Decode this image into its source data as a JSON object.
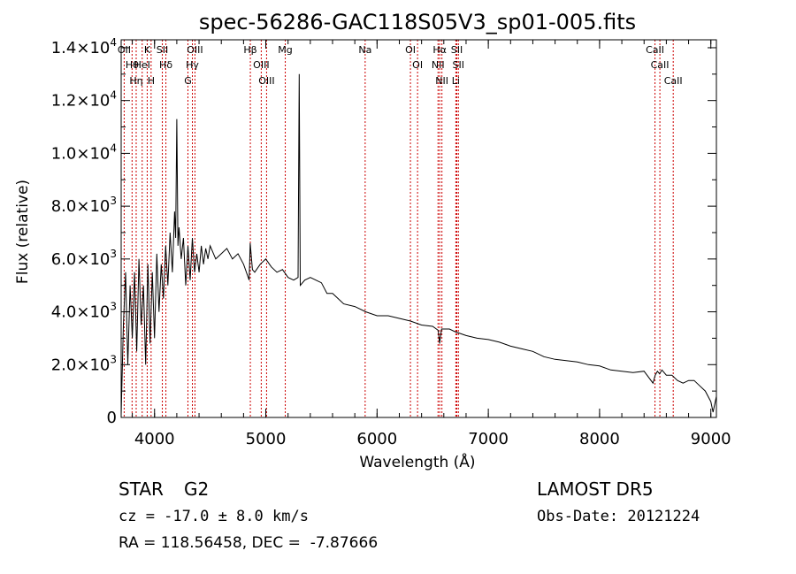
{
  "chart_data": {
    "type": "line",
    "title": "spec-56286-GAC118S05V3_sp01-005.fits",
    "xlabel": "Wavelength (Å)",
    "ylabel": "Flux (relative)",
    "xlim": [
      3700,
      9050
    ],
    "ylim": [
      0,
      14300
    ],
    "x_ticks": [
      {
        "value": 4000,
        "label": "4000"
      },
      {
        "value": 5000,
        "label": "5000"
      },
      {
        "value": 6000,
        "label": "6000"
      },
      {
        "value": 7000,
        "label": "7000"
      },
      {
        "value": 8000,
        "label": "8000"
      },
      {
        "value": 9000,
        "label": "9000"
      }
    ],
    "y_ticks": [
      {
        "value": 0,
        "mant": "0",
        "exp": ""
      },
      {
        "value": 2000,
        "mant": "2.0×10",
        "exp": "3"
      },
      {
        "value": 4000,
        "mant": "4.0×10",
        "exp": "3"
      },
      {
        "value": 6000,
        "mant": "6.0×10",
        "exp": "3"
      },
      {
        "value": 8000,
        "mant": "8.0×10",
        "exp": "3"
      },
      {
        "value": 10000,
        "mant": "1.0×10",
        "exp": "4"
      },
      {
        "value": 12000,
        "mant": "1.2×10",
        "exp": "4"
      },
      {
        "value": 14000,
        "mant": "1.4×10",
        "exp": "4"
      }
    ],
    "grid": false,
    "series_color": "#000000",
    "line_color": "#cc0000",
    "series": [
      {
        "x": [
          3700,
          3720,
          3740,
          3760,
          3780,
          3800,
          3820,
          3840,
          3860,
          3880,
          3900,
          3920,
          3940,
          3960,
          3980,
          4000,
          4020,
          4040,
          4060,
          4080,
          4100,
          4120,
          4140,
          4160,
          4180,
          4190,
          4200,
          4210,
          4220,
          4240,
          4260,
          4280,
          4300,
          4320,
          4340,
          4360,
          4380,
          4400,
          4420,
          4440,
          4460,
          4480,
          4500,
          4550,
          4600,
          4650,
          4700,
          4750,
          4800,
          4850,
          4860,
          4880,
          4900,
          4950,
          5000,
          5050,
          5100,
          5150,
          5200,
          5250,
          5290,
          5300,
          5310,
          5350,
          5400,
          5450,
          5500,
          5550,
          5600,
          5650,
          5700,
          5800,
          5900,
          6000,
          6100,
          6200,
          6300,
          6400,
          6500,
          6550,
          6562,
          6580,
          6650,
          6700,
          6800,
          6900,
          7000,
          7100,
          7200,
          7300,
          7400,
          7500,
          7600,
          7700,
          7800,
          7900,
          8000,
          8100,
          8200,
          8300,
          8400,
          8480,
          8500,
          8520,
          8540,
          8560,
          8600,
          8650,
          8700,
          8750,
          8800,
          8850,
          8900,
          8950,
          9000,
          9020,
          9050
        ],
        "y": [
          100,
          3500,
          5500,
          2000,
          5000,
          3000,
          5500,
          2500,
          6000,
          3500,
          5000,
          2000,
          5800,
          2800,
          5500,
          3000,
          6200,
          4000,
          5800,
          4500,
          6500,
          5000,
          7000,
          5500,
          7800,
          6800,
          11300,
          6500,
          7200,
          6000,
          6800,
          5000,
          6500,
          5200,
          6800,
          5500,
          6200,
          5500,
          6500,
          5800,
          6400,
          6000,
          6500,
          6000,
          6200,
          6400,
          6000,
          6200,
          5800,
          5200,
          6600,
          5600,
          5500,
          5800,
          6000,
          5700,
          5500,
          5600,
          5300,
          5200,
          5300,
          13000,
          5000,
          5200,
          5300,
          5200,
          5100,
          4700,
          4700,
          4500,
          4300,
          4200,
          4000,
          3850,
          3850,
          3750,
          3650,
          3500,
          3450,
          3300,
          2800,
          3350,
          3350,
          3250,
          3100,
          3000,
          2950,
          2850,
          2700,
          2600,
          2500,
          2300,
          2200,
          2150,
          2100,
          2000,
          1950,
          1800,
          1750,
          1700,
          1750,
          1300,
          1600,
          1750,
          1650,
          1800,
          1600,
          1600,
          1400,
          1300,
          1400,
          1400,
          1200,
          1000,
          600,
          200,
          800
        ]
      }
    ],
    "lines": [
      {
        "label": "OII",
        "x": 3727
      },
      {
        "label": "Hθ",
        "x": 3798
      },
      {
        "label": "Hη",
        "x": 3835
      },
      {
        "label": "K",
        "x": 3934
      },
      {
        "label": "HeI",
        "x": 3889
      },
      {
        "label": "H",
        "x": 3969
      },
      {
        "label": "SII",
        "x": 4070
      },
      {
        "label": "Hδ",
        "x": 4102
      },
      {
        "label": "OIII",
        "x": 4363
      },
      {
        "label": "Hγ",
        "x": 4340
      },
      {
        "label": "G",
        "x": 4300
      },
      {
        "label": "Hβ",
        "x": 4861
      },
      {
        "label": "OIII",
        "x": 4959
      },
      {
        "label": "OIII",
        "x": 5007
      },
      {
        "label": "Mg",
        "x": 5175
      },
      {
        "label": "Na",
        "x": 5893
      },
      {
        "label": "OI",
        "x": 6300
      },
      {
        "label": "OI",
        "x": 6364
      },
      {
        "label": "Hα",
        "x": 6563
      },
      {
        "label": "NII",
        "x": 6548
      },
      {
        "label": "NII",
        "x": 6583
      },
      {
        "label": "SII",
        "x": 6717
      },
      {
        "label": "SII",
        "x": 6731
      },
      {
        "label": "Li",
        "x": 6708
      },
      {
        "label": "CaII",
        "x": 8498
      },
      {
        "label": "CaII",
        "x": 8542
      },
      {
        "label": "CaII",
        "x": 8662
      }
    ]
  },
  "info": {
    "object_class": "STAR",
    "subclass": "G2",
    "survey": "LAMOST DR5",
    "cz": "cz = -17.0 ± 8.0 km/s",
    "obs_date": "Obs-Date: 20121224",
    "radec": "RA = 118.56458, DEC =  -7.87666"
  }
}
